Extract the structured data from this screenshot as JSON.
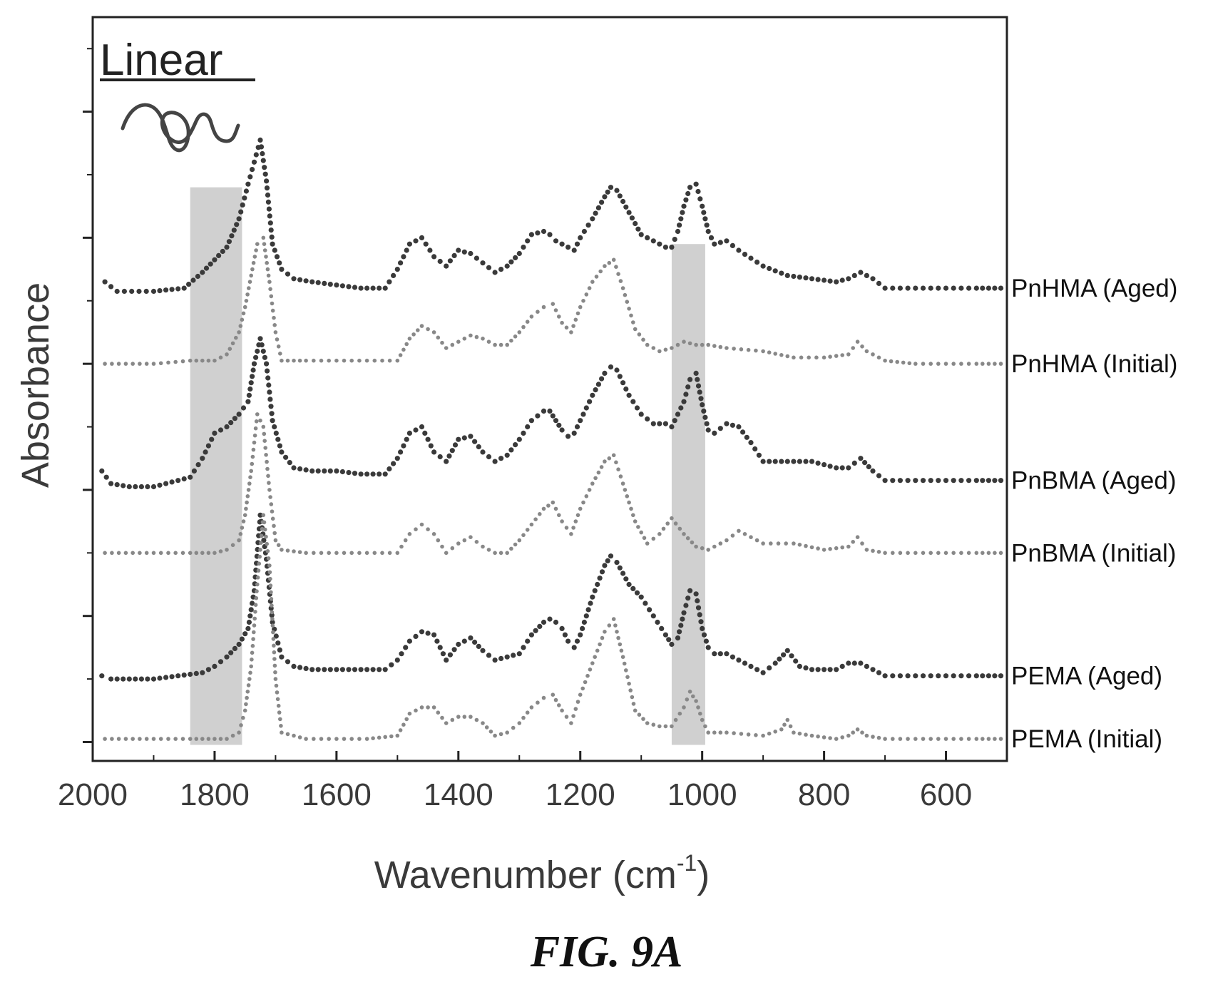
{
  "figure": {
    "caption": "FIG. 9A"
  },
  "chart_data": {
    "type": "line",
    "panel_label": "Linear",
    "xlabel": "Wavenumber (cm",
    "xlabel_superscript": "-1",
    "xlabel_suffix": ")",
    "ylabel": "Absorbance",
    "xlim": [
      2000,
      500
    ],
    "x_reversed": true,
    "x_ticks": [
      2000,
      1800,
      1600,
      1400,
      1200,
      1000,
      800,
      600
    ],
    "y_ticks_shown": false,
    "ylim": [
      -0.3,
      11.5
    ],
    "grid": false,
    "legend": "none",
    "highlight_bands": [
      {
        "x_range": [
          1840,
          1755
        ],
        "y_top": 8.8,
        "color": "#c8c8c8"
      },
      {
        "x_range": [
          1050,
          995
        ],
        "y_top": 7.9,
        "color": "#c8c8c8"
      }
    ],
    "series": [
      {
        "name": "PnHMA (Aged)",
        "color": "#3a3a3a",
        "marker_size": 3.6,
        "x": [
          1980,
          1960,
          1900,
          1850,
          1820,
          1800,
          1780,
          1760,
          1745,
          1735,
          1725,
          1715,
          1705,
          1690,
          1670,
          1640,
          1600,
          1560,
          1520,
          1500,
          1480,
          1460,
          1440,
          1420,
          1400,
          1380,
          1360,
          1340,
          1320,
          1300,
          1280,
          1260,
          1250,
          1240,
          1230,
          1220,
          1210,
          1200,
          1180,
          1160,
          1150,
          1140,
          1120,
          1100,
          1080,
          1060,
          1050,
          1040,
          1030,
          1020,
          1010,
          1000,
          990,
          980,
          960,
          940,
          900,
          860,
          820,
          780,
          760,
          740,
          720,
          700,
          650,
          600,
          550,
          510
        ],
        "y": [
          7.3,
          7.15,
          7.15,
          7.2,
          7.45,
          7.65,
          7.85,
          8.3,
          8.85,
          9.2,
          9.55,
          8.9,
          7.9,
          7.5,
          7.35,
          7.3,
          7.25,
          7.2,
          7.2,
          7.5,
          7.9,
          8.0,
          7.7,
          7.55,
          7.8,
          7.75,
          7.6,
          7.45,
          7.55,
          7.75,
          8.05,
          8.1,
          8.05,
          7.95,
          7.9,
          7.85,
          7.8,
          8.0,
          8.3,
          8.65,
          8.8,
          8.75,
          8.4,
          8.05,
          7.95,
          7.85,
          7.85,
          8.1,
          8.5,
          8.8,
          8.85,
          8.5,
          8.1,
          7.9,
          7.95,
          7.8,
          7.55,
          7.4,
          7.35,
          7.3,
          7.35,
          7.45,
          7.35,
          7.2,
          7.2,
          7.2,
          7.2,
          7.2
        ]
      },
      {
        "name": "PnHMA (Initial)",
        "color": "#888888",
        "marker_size": 2.8,
        "x": [
          1980,
          1900,
          1840,
          1800,
          1780,
          1760,
          1750,
          1740,
          1730,
          1720,
          1710,
          1700,
          1690,
          1650,
          1600,
          1550,
          1500,
          1480,
          1460,
          1440,
          1420,
          1400,
          1380,
          1360,
          1340,
          1320,
          1300,
          1280,
          1260,
          1245,
          1230,
          1215,
          1200,
          1180,
          1160,
          1145,
          1130,
          1110,
          1090,
          1070,
          1050,
          1030,
          1010,
          990,
          960,
          900,
          850,
          800,
          760,
          745,
          730,
          700,
          650,
          600,
          550,
          510
        ],
        "y": [
          6.0,
          6.0,
          6.05,
          6.05,
          6.15,
          6.5,
          6.9,
          7.4,
          7.9,
          8.0,
          7.3,
          6.5,
          6.05,
          6.05,
          6.05,
          6.05,
          6.05,
          6.4,
          6.6,
          6.5,
          6.25,
          6.35,
          6.45,
          6.4,
          6.3,
          6.3,
          6.5,
          6.75,
          6.9,
          6.95,
          6.65,
          6.5,
          6.9,
          7.3,
          7.55,
          7.65,
          7.2,
          6.55,
          6.3,
          6.2,
          6.25,
          6.35,
          6.3,
          6.3,
          6.25,
          6.2,
          6.1,
          6.1,
          6.15,
          6.35,
          6.2,
          6.05,
          6.0,
          6.0,
          6.0,
          6.0
        ]
      },
      {
        "name": "PnBMA (Aged)",
        "color": "#3a3a3a",
        "marker_size": 3.6,
        "x": [
          1985,
          1970,
          1940,
          1900,
          1860,
          1840,
          1820,
          1800,
          1780,
          1760,
          1745,
          1735,
          1725,
          1715,
          1705,
          1690,
          1670,
          1640,
          1600,
          1560,
          1520,
          1500,
          1480,
          1460,
          1440,
          1420,
          1400,
          1380,
          1360,
          1340,
          1320,
          1300,
          1280,
          1260,
          1250,
          1240,
          1230,
          1220,
          1210,
          1200,
          1180,
          1160,
          1150,
          1140,
          1120,
          1100,
          1080,
          1060,
          1050,
          1040,
          1030,
          1020,
          1010,
          1000,
          990,
          980,
          960,
          940,
          920,
          900,
          860,
          820,
          780,
          760,
          740,
          720,
          700,
          650,
          600,
          550,
          510
        ],
        "y": [
          4.3,
          4.1,
          4.05,
          4.05,
          4.15,
          4.2,
          4.5,
          4.9,
          5.0,
          5.2,
          5.4,
          6.0,
          6.4,
          6.0,
          5.1,
          4.6,
          4.35,
          4.3,
          4.3,
          4.25,
          4.25,
          4.5,
          4.9,
          5.0,
          4.6,
          4.45,
          4.8,
          4.85,
          4.6,
          4.45,
          4.55,
          4.8,
          5.1,
          5.25,
          5.25,
          5.1,
          4.95,
          4.85,
          4.9,
          5.1,
          5.5,
          5.85,
          5.95,
          5.9,
          5.5,
          5.2,
          5.05,
          5.05,
          5.0,
          5.2,
          5.4,
          5.75,
          5.85,
          5.35,
          4.95,
          4.9,
          5.05,
          5.0,
          4.75,
          4.45,
          4.45,
          4.45,
          4.35,
          4.35,
          4.5,
          4.3,
          4.15,
          4.15,
          4.15,
          4.15,
          4.15
        ]
      },
      {
        "name": "PnBMA (Initial)",
        "color": "#888888",
        "marker_size": 2.8,
        "x": [
          1980,
          1900,
          1840,
          1800,
          1780,
          1760,
          1750,
          1740,
          1730,
          1720,
          1710,
          1700,
          1690,
          1650,
          1600,
          1550,
          1500,
          1480,
          1460,
          1440,
          1420,
          1400,
          1380,
          1360,
          1340,
          1320,
          1300,
          1280,
          1260,
          1245,
          1230,
          1215,
          1200,
          1180,
          1160,
          1145,
          1130,
          1110,
          1090,
          1070,
          1050,
          1030,
          1010,
          990,
          960,
          940,
          900,
          850,
          800,
          760,
          745,
          730,
          700,
          650,
          600,
          550,
          510
        ],
        "y": [
          3.0,
          3.0,
          3.0,
          3.0,
          3.05,
          3.2,
          3.6,
          4.3,
          5.2,
          5.0,
          4.0,
          3.2,
          3.05,
          3.0,
          3.0,
          3.0,
          3.0,
          3.3,
          3.45,
          3.3,
          3.0,
          3.15,
          3.25,
          3.1,
          3.0,
          3.0,
          3.2,
          3.45,
          3.7,
          3.8,
          3.5,
          3.3,
          3.7,
          4.1,
          4.45,
          4.55,
          4.1,
          3.5,
          3.15,
          3.3,
          3.55,
          3.3,
          3.1,
          3.05,
          3.2,
          3.35,
          3.15,
          3.15,
          3.05,
          3.1,
          3.25,
          3.05,
          3.0,
          3.0,
          3.0,
          3.0,
          3.0
        ]
      },
      {
        "name": "PEMA (Aged)",
        "color": "#3a3a3a",
        "marker_size": 3.6,
        "x": [
          1985,
          1970,
          1940,
          1900,
          1860,
          1820,
          1800,
          1780,
          1760,
          1745,
          1735,
          1725,
          1715,
          1705,
          1690,
          1670,
          1640,
          1600,
          1560,
          1520,
          1500,
          1480,
          1460,
          1440,
          1420,
          1400,
          1380,
          1360,
          1340,
          1320,
          1300,
          1280,
          1260,
          1250,
          1240,
          1230,
          1220,
          1210,
          1200,
          1180,
          1160,
          1150,
          1140,
          1120,
          1100,
          1080,
          1060,
          1050,
          1040,
          1030,
          1020,
          1010,
          1000,
          990,
          980,
          960,
          940,
          920,
          900,
          880,
          860,
          840,
          820,
          780,
          760,
          740,
          720,
          700,
          650,
          600,
          550,
          510
        ],
        "y": [
          1.05,
          1.0,
          1.0,
          1.0,
          1.05,
          1.1,
          1.2,
          1.35,
          1.55,
          1.8,
          2.4,
          3.6,
          2.9,
          1.9,
          1.35,
          1.2,
          1.15,
          1.15,
          1.15,
          1.15,
          1.3,
          1.6,
          1.75,
          1.7,
          1.3,
          1.55,
          1.65,
          1.45,
          1.3,
          1.35,
          1.4,
          1.7,
          1.9,
          1.95,
          1.9,
          1.8,
          1.6,
          1.5,
          1.7,
          2.3,
          2.8,
          2.95,
          2.85,
          2.5,
          2.3,
          2.0,
          1.7,
          1.55,
          1.65,
          2.05,
          2.4,
          2.35,
          1.8,
          1.5,
          1.4,
          1.4,
          1.3,
          1.2,
          1.1,
          1.25,
          1.45,
          1.2,
          1.15,
          1.15,
          1.25,
          1.25,
          1.15,
          1.05,
          1.05,
          1.05,
          1.05,
          1.05
        ]
      },
      {
        "name": "PEMA (Initial)",
        "color": "#888888",
        "marker_size": 2.8,
        "x": [
          1980,
          1900,
          1840,
          1800,
          1780,
          1760,
          1750,
          1740,
          1730,
          1720,
          1710,
          1700,
          1690,
          1650,
          1600,
          1550,
          1500,
          1480,
          1460,
          1440,
          1420,
          1400,
          1380,
          1360,
          1340,
          1320,
          1300,
          1280,
          1260,
          1245,
          1230,
          1215,
          1200,
          1180,
          1160,
          1145,
          1130,
          1110,
          1090,
          1070,
          1050,
          1030,
          1020,
          1010,
          1000,
          990,
          960,
          900,
          870,
          860,
          850,
          820,
          780,
          760,
          745,
          730,
          700,
          650,
          600,
          550,
          510
        ],
        "y": [
          0.05,
          0.05,
          0.05,
          0.05,
          0.05,
          0.15,
          0.5,
          1.2,
          2.5,
          3.6,
          2.8,
          1.0,
          0.15,
          0.05,
          0.05,
          0.05,
          0.1,
          0.45,
          0.55,
          0.55,
          0.3,
          0.4,
          0.4,
          0.3,
          0.1,
          0.15,
          0.3,
          0.55,
          0.7,
          0.75,
          0.5,
          0.3,
          0.75,
          1.25,
          1.75,
          1.95,
          1.35,
          0.5,
          0.3,
          0.25,
          0.25,
          0.55,
          0.8,
          0.65,
          0.35,
          0.15,
          0.15,
          0.1,
          0.2,
          0.35,
          0.15,
          0.1,
          0.05,
          0.1,
          0.2,
          0.1,
          0.05,
          0.05,
          0.05,
          0.05,
          0.05
        ]
      }
    ]
  }
}
